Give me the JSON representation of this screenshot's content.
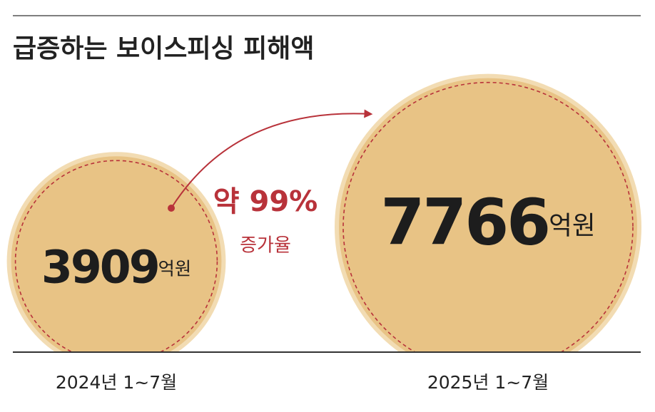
{
  "chart_data": {
    "type": "bubble",
    "title": "급증하는 보이스피싱 피해액",
    "categories": [
      "2024년 1~7월",
      "2025년 1~7월"
    ],
    "values": [
      3909,
      7766
    ],
    "unit": "억원",
    "annotation": "약 99%",
    "annotation_sub": "증가율",
    "color": "#e8c385",
    "accent_color": "#b8323a"
  }
}
